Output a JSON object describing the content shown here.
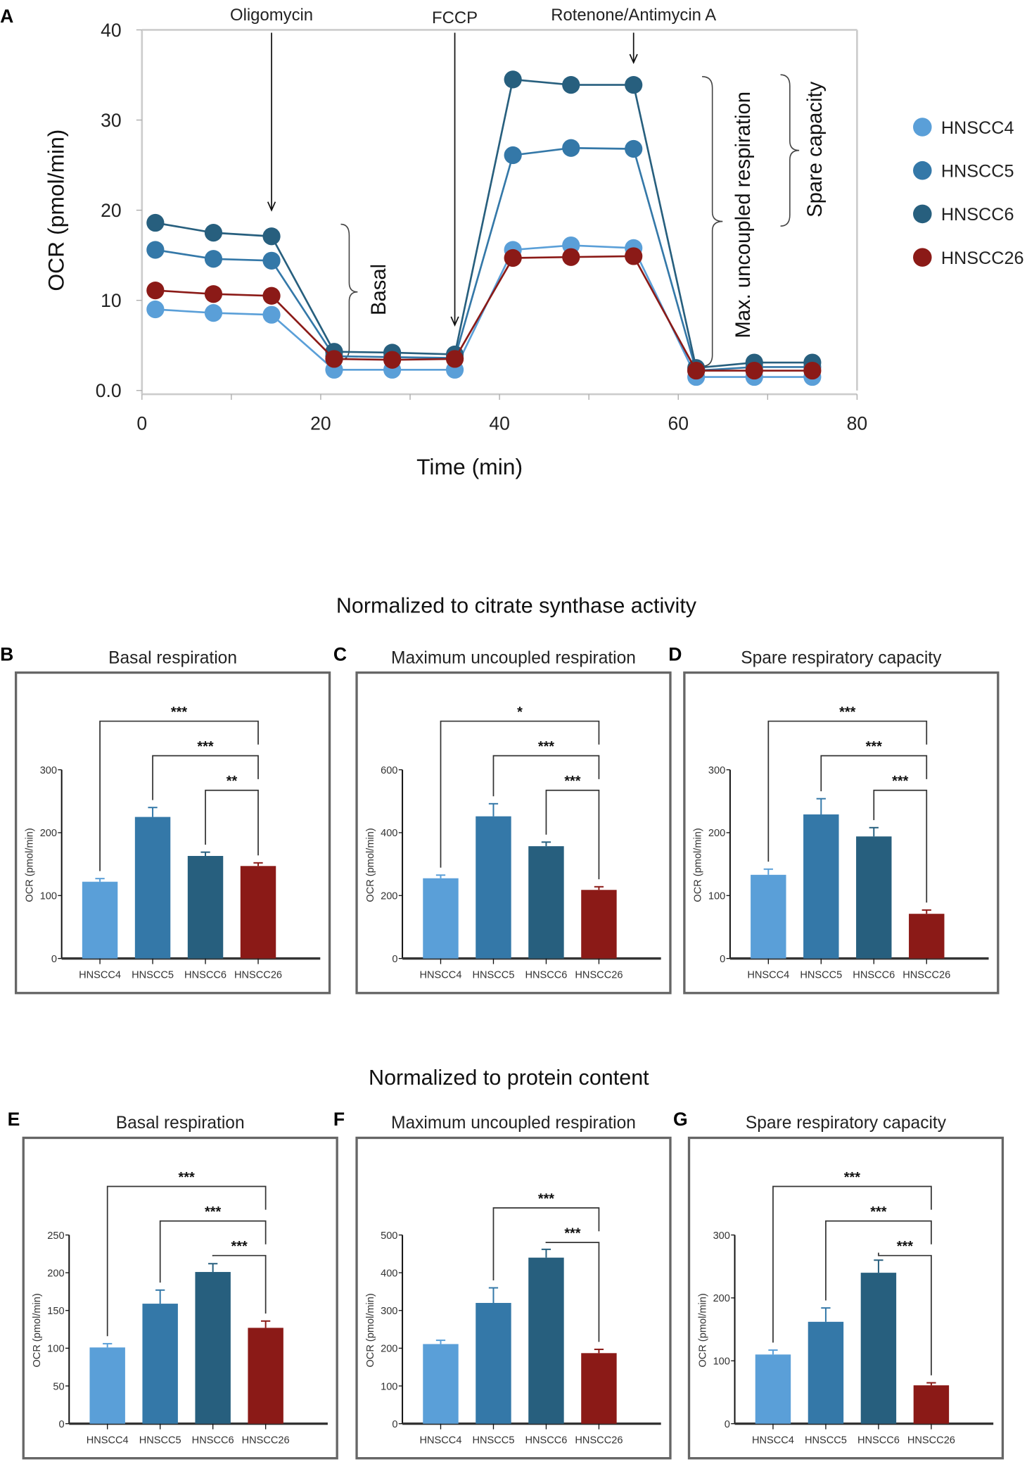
{
  "figure": {
    "panel_a_letter": "A",
    "section_1_heading": "Normalized to citrate synthase activity",
    "section_2_heading": "Normalized to protein content"
  },
  "colors": {
    "HNSCC4": "#5a9fd8",
    "HNSCC5": "#3478a8",
    "HNSCC6": "#275f7e",
    "HNSCC26": "#8b1a17"
  },
  "chart_data": [
    {
      "type": "line",
      "panel": "A",
      "xlabel": "Time (min)",
      "ylabel": "OCR (pmol/min)",
      "xlim": [
        0,
        80
      ],
      "ylim": [
        0,
        40
      ],
      "xticks": [
        "0",
        "20",
        "40",
        "60",
        "80"
      ],
      "yticks": [
        "0.0",
        "10",
        "20",
        "30",
        "40"
      ],
      "legend_position": "right",
      "annotations": {
        "injections": [
          {
            "label": "Oligomycin",
            "x": 14.5
          },
          {
            "label": "FCCP",
            "x": 35
          },
          {
            "label": "Rotenone/Antimycin A",
            "x": 55
          }
        ],
        "basal": "Basal",
        "max": "Max. uncoupled respiration",
        "spare": "Spare capacity"
      },
      "x": [
        1.5,
        8,
        14.5,
        21.5,
        28,
        35,
        41.5,
        48,
        55,
        62,
        68.5,
        75
      ],
      "series": [
        {
          "name": "HNSCC4",
          "values": [
            9.0,
            8.6,
            8.4,
            2.3,
            2.3,
            2.3,
            15.6,
            16.1,
            15.8,
            1.5,
            1.5,
            1.5
          ]
        },
        {
          "name": "HNSCC5",
          "values": [
            15.6,
            14.6,
            14.4,
            3.8,
            3.7,
            3.6,
            26.1,
            26.9,
            26.8,
            2.2,
            2.6,
            2.6
          ]
        },
        {
          "name": "HNSCC6",
          "values": [
            18.6,
            17.5,
            17.1,
            4.3,
            4.2,
            4.0,
            34.5,
            33.9,
            33.9,
            2.5,
            3.1,
            3.1
          ]
        },
        {
          "name": "HNSCC26",
          "values": [
            11.1,
            10.7,
            10.5,
            3.5,
            3.4,
            3.5,
            14.7,
            14.8,
            14.9,
            2.2,
            2.2,
            2.2
          ]
        }
      ]
    },
    {
      "type": "bar",
      "panel": "B",
      "title": "Basal respiration",
      "ylabel": "OCR (pmol/min)",
      "categories": [
        "HNSCC4",
        "HNSCC5",
        "HNSCC6",
        "HNSCC26"
      ],
      "values": [
        122,
        225,
        163,
        147
      ],
      "errors": [
        5,
        15,
        6,
        5
      ],
      "ylim": [
        0,
        300
      ],
      "yticks": [
        "0",
        "100",
        "200",
        "300"
      ],
      "significance": [
        {
          "from": 0,
          "to": 3,
          "label": "***"
        },
        {
          "from": 1,
          "to": 3,
          "label": "***"
        },
        {
          "from": 2,
          "to": 3,
          "label": "**"
        }
      ]
    },
    {
      "type": "bar",
      "panel": "C",
      "title": "Maximum uncoupled respiration",
      "ylabel": "OCR (pmol/min)",
      "categories": [
        "HNSCC4",
        "HNSCC5",
        "HNSCC6",
        "HNSCC26"
      ],
      "values": [
        255,
        452,
        357,
        218
      ],
      "errors": [
        10,
        40,
        13,
        10
      ],
      "ylim": [
        0,
        600
      ],
      "yticks": [
        "0",
        "200",
        "400",
        "600"
      ],
      "significance": [
        {
          "from": 0,
          "to": 3,
          "label": "*"
        },
        {
          "from": 1,
          "to": 3,
          "label": "***"
        },
        {
          "from": 2,
          "to": 3,
          "label": "***"
        }
      ]
    },
    {
      "type": "bar",
      "panel": "D",
      "title": "Spare respiratory capacity",
      "ylabel": "OCR (pmol/min)",
      "categories": [
        "HNSCC4",
        "HNSCC5",
        "HNSCC6",
        "HNSCC26"
      ],
      "values": [
        133,
        229,
        194,
        71
      ],
      "errors": [
        9,
        25,
        14,
        6
      ],
      "ylim": [
        0,
        300
      ],
      "yticks": [
        "0",
        "100",
        "200",
        "300"
      ],
      "significance": [
        {
          "from": 0,
          "to": 3,
          "label": "***"
        },
        {
          "from": 1,
          "to": 3,
          "label": "***"
        },
        {
          "from": 2,
          "to": 3,
          "label": "***"
        }
      ]
    },
    {
      "type": "bar",
      "panel": "E",
      "title": "Basal respiration",
      "ylabel": "OCR (pmol/min)",
      "categories": [
        "HNSCC4",
        "HNSCC5",
        "HNSCC6",
        "HNSCC26"
      ],
      "values": [
        101,
        159,
        201,
        127
      ],
      "errors": [
        5,
        18,
        11,
        9
      ],
      "ylim": [
        0,
        250
      ],
      "yticks": [
        "0",
        "50",
        "100",
        "150",
        "200",
        "250"
      ],
      "significance": [
        {
          "from": 0,
          "to": 3,
          "label": "***"
        },
        {
          "from": 1,
          "to": 3,
          "label": "***"
        },
        {
          "from": 2,
          "to": 3,
          "label": "***"
        }
      ]
    },
    {
      "type": "bar",
      "panel": "F",
      "title": "Maximum uncoupled respiration",
      "ylabel": "OCR (pmol/min)",
      "categories": [
        "HNSCC4",
        "HNSCC5",
        "HNSCC6",
        "HNSCC26"
      ],
      "values": [
        211,
        320,
        440,
        187
      ],
      "errors": [
        10,
        40,
        22,
        10
      ],
      "ylim": [
        0,
        500
      ],
      "yticks": [
        "0",
        "100",
        "200",
        "300",
        "400",
        "500"
      ],
      "significance": [
        {
          "from": 1,
          "to": 3,
          "label": "***"
        },
        {
          "from": 2,
          "to": 3,
          "label": "***"
        }
      ]
    },
    {
      "type": "bar",
      "panel": "G",
      "title": "Spare respiratory capacity",
      "ylabel": "OCR (pmol/min)",
      "categories": [
        "HNSCC4",
        "HNSCC5",
        "HNSCC6",
        "HNSCC26"
      ],
      "values": [
        110,
        162,
        240,
        61
      ],
      "errors": [
        7,
        22,
        20,
        4
      ],
      "ylim": [
        0,
        300
      ],
      "yticks": [
        "0",
        "100",
        "200",
        "300"
      ],
      "significance": [
        {
          "from": 0,
          "to": 3,
          "label": "***"
        },
        {
          "from": 1,
          "to": 3,
          "label": "***"
        },
        {
          "from": 2,
          "to": 3,
          "label": "***"
        }
      ]
    }
  ]
}
